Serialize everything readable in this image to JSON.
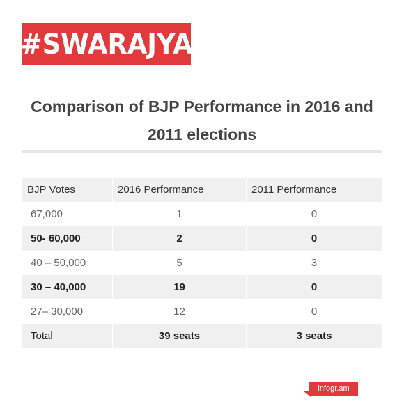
{
  "brand": {
    "logo_text": "#SWARAJYA",
    "color": "#e23a3c"
  },
  "chart_data": {
    "type": "table",
    "title": "Comparison of BJP Performance in 2016 and 2011 elections",
    "columns": [
      "BJP Votes",
      "2016 Performance",
      "2011 Performance"
    ],
    "rows": [
      [
        "67,000",
        "1",
        "0"
      ],
      [
        "50- 60,000",
        "2",
        "0"
      ],
      [
        "40 – 50,000",
        "5",
        "3"
      ],
      [
        "30 – 40,000",
        "19",
        "0"
      ],
      [
        "27– 30,000",
        "12",
        "0"
      ],
      [
        "Total",
        "39 seats",
        "3 seats"
      ]
    ]
  },
  "footer": {
    "credit": "infogr.am"
  }
}
